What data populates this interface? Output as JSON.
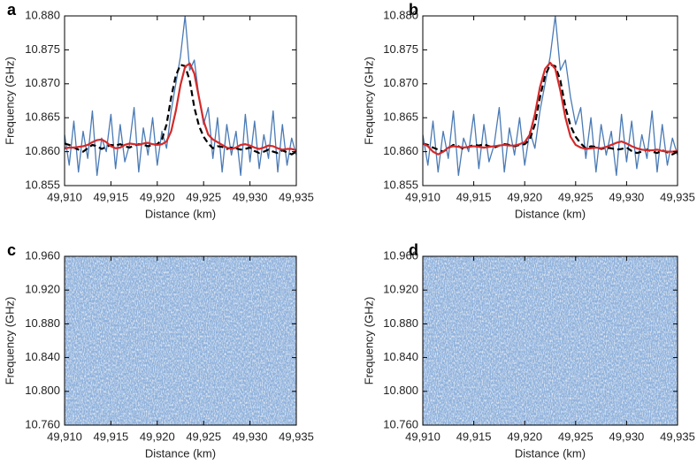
{
  "chart_data": [
    {
      "type": "line",
      "panel": "a",
      "xlabel": "Distance (km)",
      "ylabel": "Frequency (GHz)",
      "xlim": [
        49910,
        49935
      ],
      "ylim": [
        10.855,
        10.88
      ],
      "xticks": [
        {
          "value": 49910,
          "label": "49,910"
        },
        {
          "value": 49915,
          "label": "49,915"
        },
        {
          "value": 49920,
          "label": "49,920"
        },
        {
          "value": 49925,
          "label": "49,925"
        },
        {
          "value": 49930,
          "label": "49,930"
        },
        {
          "value": 49935,
          "label": "49,935"
        }
      ],
      "yticks": [
        10.855,
        {
          "value": 10.86,
          "label": "10.860"
        },
        10.865,
        {
          "value": 10.87,
          "label": "10.870"
        },
        10.875,
        {
          "value": 10.88,
          "label": "10.880"
        }
      ],
      "x": [
        49910,
        49910.5,
        49911,
        49911.5,
        49912,
        49912.5,
        49913,
        49913.5,
        49914,
        49914.5,
        49915,
        49915.5,
        49916,
        49916.5,
        49917,
        49917.5,
        49918,
        49918.5,
        49919,
        49919.5,
        49920,
        49920.5,
        49921,
        49921.5,
        49922,
        49922.5,
        49923,
        49923.5,
        49924,
        49924.5,
        49925,
        49925.5,
        49926,
        49926.5,
        49927,
        49927.5,
        49928,
        49928.5,
        49929,
        49929.5,
        49930,
        49930.5,
        49931,
        49931.5,
        49932,
        49932.5,
        49933,
        49933.5,
        49934,
        49934.5,
        49935
      ],
      "series": [
        {
          "color": "#4a7ab5",
          "style": "solid",
          "values": [
            10.8625,
            10.858,
            10.8645,
            10.857,
            10.863,
            10.859,
            10.866,
            10.8565,
            10.862,
            10.86,
            10.8655,
            10.8575,
            10.864,
            10.8585,
            10.861,
            10.8665,
            10.857,
            10.8635,
            10.8595,
            10.865,
            10.858,
            10.863,
            10.8605,
            10.866,
            10.87,
            10.874,
            10.88,
            10.872,
            10.8735,
            10.868,
            10.864,
            10.8665,
            10.859,
            10.865,
            10.857,
            10.864,
            10.8595,
            10.863,
            10.8565,
            10.8655,
            10.8585,
            10.8645,
            10.8575,
            10.8625,
            10.859,
            10.866,
            10.857,
            10.864,
            10.858,
            10.862,
            10.8595
          ]
        },
        {
          "color": "#000000",
          "style": "dashed",
          "values": [
            10.8612,
            10.861,
            10.8606,
            10.8603,
            10.86,
            10.8605,
            10.861,
            10.8608,
            10.8604,
            10.8607,
            10.861,
            10.8609,
            10.8611,
            10.8608,
            10.8606,
            10.8609,
            10.8611,
            10.861,
            10.8608,
            10.861,
            10.8611,
            10.8618,
            10.864,
            10.868,
            10.8712,
            10.8728,
            10.8726,
            10.8705,
            10.8665,
            10.8638,
            10.8622,
            10.8612,
            10.8605,
            10.8608,
            10.8607,
            10.8604,
            10.8606,
            10.8605,
            10.8603,
            10.8604,
            10.8606,
            10.8601,
            10.8598,
            10.86,
            10.8603,
            10.86,
            10.8598,
            10.8602,
            10.8599,
            10.8596,
            10.86
          ]
        },
        {
          "color": "#d42a2a",
          "style": "solid",
          "values": [
            10.8605,
            10.8606,
            10.8606,
            10.8607,
            10.8608,
            10.861,
            10.8614,
            10.8617,
            10.8618,
            10.8614,
            10.8608,
            10.8605,
            10.8606,
            10.861,
            10.8612,
            10.8611,
            10.861,
            10.8612,
            10.8613,
            10.8611,
            10.861,
            10.8611,
            10.8615,
            10.863,
            10.866,
            10.8698,
            10.8725,
            10.873,
            10.8715,
            10.868,
            10.8645,
            10.8625,
            10.8618,
            10.8614,
            10.861,
            10.8606,
            10.8604,
            10.8606,
            10.861,
            10.8611,
            10.8609,
            10.8606,
            10.8604,
            10.8606,
            10.8609,
            10.8608,
            10.8605,
            10.8603,
            10.8604,
            10.8604,
            10.8602
          ]
        }
      ]
    },
    {
      "type": "line",
      "panel": "b",
      "xlabel": "Distance (km)",
      "ylabel": "Frequency (GHz)",
      "xlim": [
        49910,
        49935
      ],
      "ylim": [
        10.855,
        10.88
      ],
      "xticks": [
        {
          "value": 49910,
          "label": "49,910"
        },
        {
          "value": 49915,
          "label": "49,915"
        },
        {
          "value": 49920,
          "label": "49,920"
        },
        {
          "value": 49925,
          "label": "49,925"
        },
        {
          "value": 49930,
          "label": "49,930"
        },
        {
          "value": 49935,
          "label": "49,935"
        }
      ],
      "yticks": [
        10.855,
        {
          "value": 10.86,
          "label": "10.860"
        },
        10.865,
        {
          "value": 10.87,
          "label": "10.870"
        },
        10.875,
        {
          "value": 10.88,
          "label": "10.880"
        }
      ],
      "x": [
        49910,
        49910.5,
        49911,
        49911.5,
        49912,
        49912.5,
        49913,
        49913.5,
        49914,
        49914.5,
        49915,
        49915.5,
        49916,
        49916.5,
        49917,
        49917.5,
        49918,
        49918.5,
        49919,
        49919.5,
        49920,
        49920.5,
        49921,
        49921.5,
        49922,
        49922.5,
        49923,
        49923.5,
        49924,
        49924.5,
        49925,
        49925.5,
        49926,
        49926.5,
        49927,
        49927.5,
        49928,
        49928.5,
        49929,
        49929.5,
        49930,
        49930.5,
        49931,
        49931.5,
        49932,
        49932.5,
        49933,
        49933.5,
        49934,
        49934.5,
        49935
      ],
      "series": [
        {
          "color": "#4a7ab5",
          "style": "solid",
          "values": [
            10.8625,
            10.858,
            10.8645,
            10.857,
            10.863,
            10.859,
            10.866,
            10.8565,
            10.862,
            10.86,
            10.8655,
            10.8575,
            10.864,
            10.8585,
            10.861,
            10.8665,
            10.857,
            10.8635,
            10.8595,
            10.865,
            10.858,
            10.863,
            10.8605,
            10.866,
            10.87,
            10.874,
            10.88,
            10.872,
            10.8735,
            10.868,
            10.864,
            10.8665,
            10.859,
            10.865,
            10.857,
            10.864,
            10.8595,
            10.863,
            10.8565,
            10.8655,
            10.8585,
            10.8645,
            10.8575,
            10.8625,
            10.859,
            10.866,
            10.857,
            10.864,
            10.858,
            10.862,
            10.8595
          ]
        },
        {
          "color": "#000000",
          "style": "dashed",
          "values": [
            10.8612,
            10.861,
            10.8606,
            10.8603,
            10.86,
            10.8605,
            10.861,
            10.8608,
            10.8604,
            10.8607,
            10.861,
            10.8609,
            10.8611,
            10.8608,
            10.8606,
            10.8609,
            10.8611,
            10.861,
            10.8608,
            10.861,
            10.8611,
            10.8618,
            10.864,
            10.868,
            10.8712,
            10.8728,
            10.8726,
            10.8705,
            10.8665,
            10.8638,
            10.8622,
            10.8612,
            10.8605,
            10.8608,
            10.8607,
            10.8604,
            10.8606,
            10.8605,
            10.8603,
            10.8604,
            10.8606,
            10.8601,
            10.8598,
            10.86,
            10.8603,
            10.86,
            10.8598,
            10.8602,
            10.8599,
            10.8596,
            10.86
          ]
        },
        {
          "color": "#d42a2a",
          "style": "solid",
          "values": [
            10.8612,
            10.8608,
            10.86,
            10.8596,
            10.86,
            10.8606,
            10.8608,
            10.8607,
            10.8606,
            10.8607,
            10.8608,
            10.8607,
            10.8606,
            10.8607,
            10.8608,
            10.8609,
            10.861,
            10.8609,
            10.8609,
            10.8611,
            10.8614,
            10.8625,
            10.8655,
            10.8695,
            10.8722,
            10.8731,
            10.8722,
            10.869,
            10.865,
            10.8622,
            10.861,
            10.8606,
            10.8604,
            10.8605,
            10.8606,
            10.8605,
            10.8607,
            10.861,
            10.8613,
            10.8615,
            10.8612,
            10.8608,
            10.8605,
            10.8603,
            10.8602,
            10.8602,
            10.8603,
            10.8601,
            10.86,
            10.86,
            10.8601
          ]
        }
      ]
    },
    {
      "type": "heatmap",
      "panel": "c",
      "xlabel": "Distance (km)",
      "ylabel": "Frequency (GHz)",
      "color": "#8fb1dc",
      "xlim": [
        49910,
        49935
      ],
      "ylim": [
        10.76,
        10.96
      ],
      "xticks": [
        {
          "value": 49910,
          "label": "49,910"
        },
        {
          "value": 49915,
          "label": "49,915"
        },
        {
          "value": 49920,
          "label": "49,920"
        },
        {
          "value": 49925,
          "label": "49,925"
        },
        {
          "value": 49930,
          "label": "49,930"
        },
        {
          "value": 49935,
          "label": "49,935"
        }
      ],
      "yticks": [
        {
          "value": 10.76,
          "label": "10.760"
        },
        {
          "value": 10.8,
          "label": "10.800"
        },
        {
          "value": 10.84,
          "label": "10.840"
        },
        {
          "value": 10.88,
          "label": "10.880"
        },
        {
          "value": 10.92,
          "label": "10.920"
        },
        {
          "value": 10.96,
          "label": "10.960"
        }
      ]
    },
    {
      "type": "heatmap",
      "panel": "d",
      "xlabel": "Distance (km)",
      "ylabel": "Frequency (GHz)",
      "color": "#8fb1dc",
      "xlim": [
        49910,
        49935
      ],
      "ylim": [
        10.76,
        10.96
      ],
      "xticks": [
        {
          "value": 49910,
          "label": "49,910"
        },
        {
          "value": 49915,
          "label": "49,915"
        },
        {
          "value": 49920,
          "label": "49,920"
        },
        {
          "value": 49925,
          "label": "49,925"
        },
        {
          "value": 49930,
          "label": "49,930"
        },
        {
          "value": 49935,
          "label": "49,935"
        }
      ],
      "yticks": [
        {
          "value": 10.76,
          "label": "10.760"
        },
        {
          "value": 10.8,
          "label": "10.800"
        },
        {
          "value": 10.84,
          "label": "10.840"
        },
        {
          "value": 10.88,
          "label": "10.880"
        },
        {
          "value": 10.92,
          "label": "10.920"
        },
        {
          "value": 10.96,
          "label": "10.960"
        }
      ]
    }
  ]
}
